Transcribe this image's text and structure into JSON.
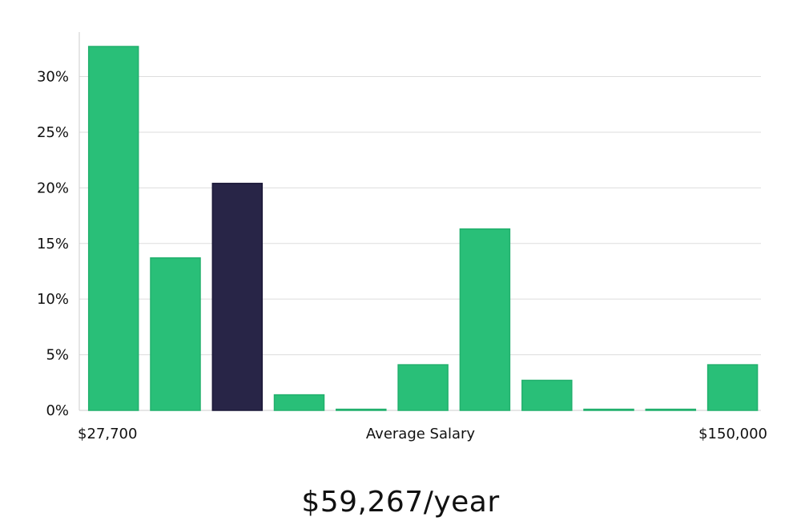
{
  "chart_data": {
    "type": "bar",
    "title": "",
    "xlabel": "Average Salary",
    "ylabel": "",
    "x_range_labels": {
      "min": "$27,700",
      "max": "$150,000"
    },
    "ylim": [
      0,
      34
    ],
    "yticks": [
      0,
      5,
      10,
      15,
      20,
      25,
      30
    ],
    "ytick_labels": [
      "0%",
      "5%",
      "10%",
      "15%",
      "20%",
      "25%",
      "30%"
    ],
    "grid": true,
    "values": [
      32.7,
      13.7,
      20.4,
      1.4,
      0.1,
      4.1,
      16.3,
      2.7,
      0.1,
      0.1,
      4.1
    ],
    "highlight_index": 2,
    "colors": {
      "bar": "#29bf78",
      "highlight": "#282547",
      "grid": "#dddddd",
      "axis": "#cccccc"
    }
  },
  "headline": "$59,267/year"
}
